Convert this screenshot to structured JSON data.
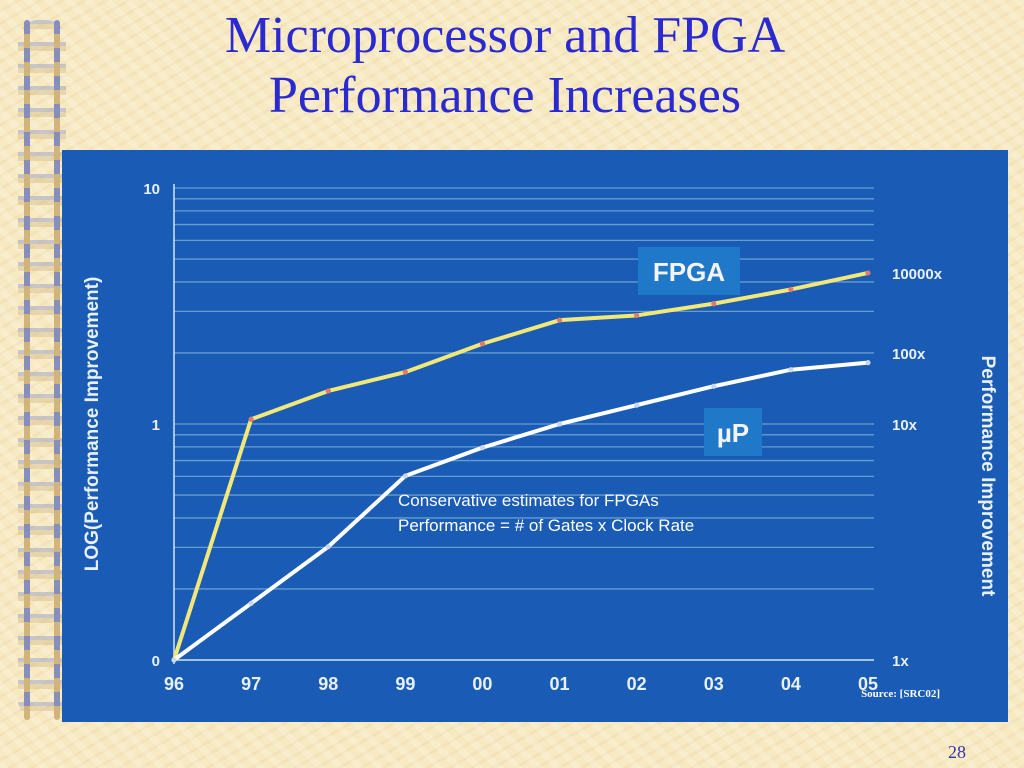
{
  "slide": {
    "title_line1": "Microprocessor and FPGA",
    "title_line2": "Performance Increases",
    "note_line1": "Conservative estimates for FPGAs",
    "note_line2": "Performance = # of Gates x Clock Rate",
    "source": "Source: [SRC02]",
    "page_number": "28"
  },
  "colors": {
    "background": "#f7e9c2",
    "title": "#2a2ad0",
    "chart_bg": "#1a5bb5",
    "fpga_line": "#f2e87a",
    "up_line": "#ffffff",
    "label_box": "#1f78c8"
  },
  "chart_data": {
    "type": "line",
    "ylabel": "LOG(Performance Improvement)",
    "y2label": "Performance Improvement",
    "ylim": [
      0,
      10
    ],
    "left_ticks": [
      "10",
      "1",
      "0"
    ],
    "right_ticks": [
      "10000x",
      "100x",
      "10x",
      "1x"
    ],
    "categories": [
      "96",
      "97",
      "98",
      "99",
      "00",
      "01",
      "02",
      "03",
      "04",
      "05"
    ],
    "grid": true,
    "series": [
      {
        "name": "FPGA",
        "x": [
          0,
          1,
          2,
          3,
          4,
          5,
          6,
          7,
          8,
          9
        ],
        "values": [
          0,
          5.1,
          5.7,
          6.1,
          6.7,
          7.2,
          7.3,
          7.55,
          7.85,
          8.2
        ]
      },
      {
        "name": "µP",
        "x": [
          0,
          1,
          2,
          3,
          4,
          5,
          6,
          7,
          8,
          9
        ],
        "values": [
          0,
          1.2,
          2.4,
          3.9,
          4.5,
          5.0,
          5.4,
          5.8,
          6.15,
          6.3
        ]
      }
    ]
  }
}
